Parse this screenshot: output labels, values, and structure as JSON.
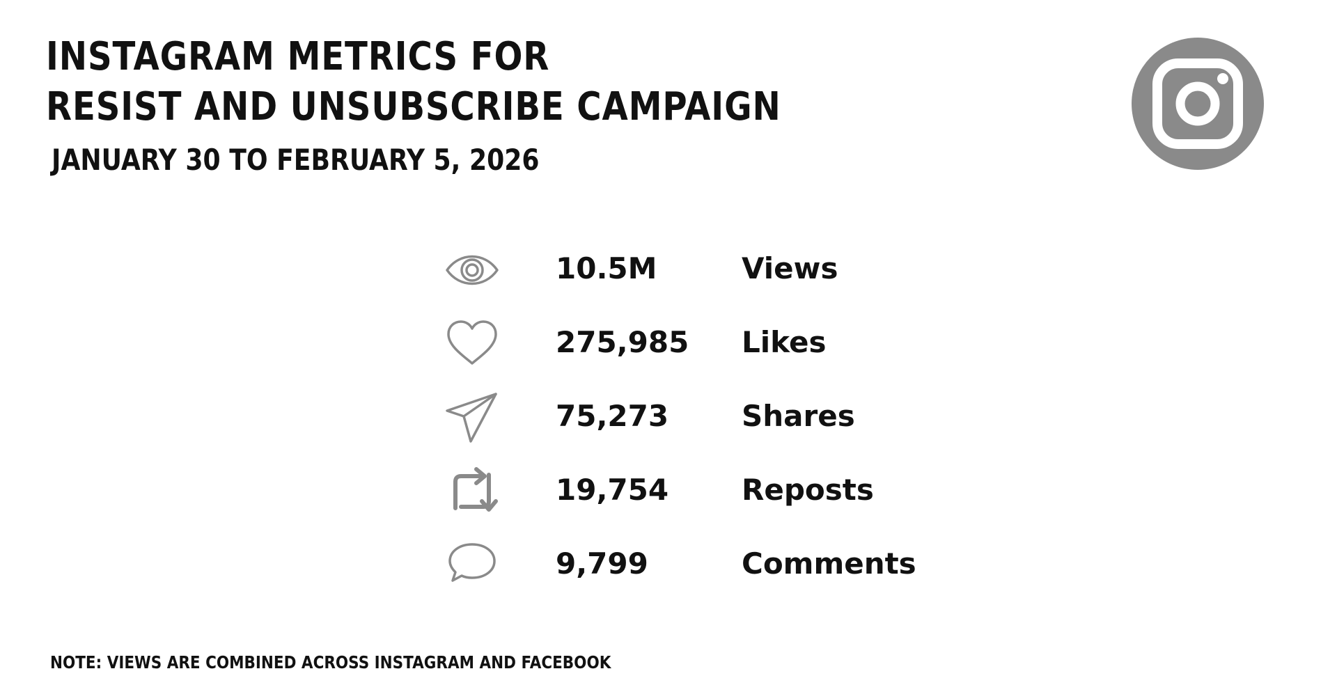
{
  "header": {
    "title_line1": "INSTAGRAM METRICS FOR",
    "title_line2": "RESIST AND UNSUBSCRIBE CAMPAIGN",
    "subtitle": "JANUARY 30 TO FEBRUARY 5, 2026"
  },
  "logo": {
    "icon": "instagram-icon",
    "color": "#8a8a8a"
  },
  "metrics": [
    {
      "icon": "eye-icon",
      "value": "10.5M",
      "label": "Views"
    },
    {
      "icon": "heart-icon",
      "value": "275,985",
      "label": "Likes"
    },
    {
      "icon": "paper-plane-icon",
      "value": "75,273",
      "label": "Shares"
    },
    {
      "icon": "repost-icon",
      "value": "19,754",
      "label": "Reposts"
    },
    {
      "icon": "comment-icon",
      "value": "9,799",
      "label": "Comments"
    }
  ],
  "footer": {
    "note": "NOTE: VIEWS ARE COMBINED ACROSS INSTAGRAM AND FACEBOOK"
  },
  "colors": {
    "text": "#111111",
    "icon": "#8a8a8a",
    "background": "#ffffff"
  }
}
